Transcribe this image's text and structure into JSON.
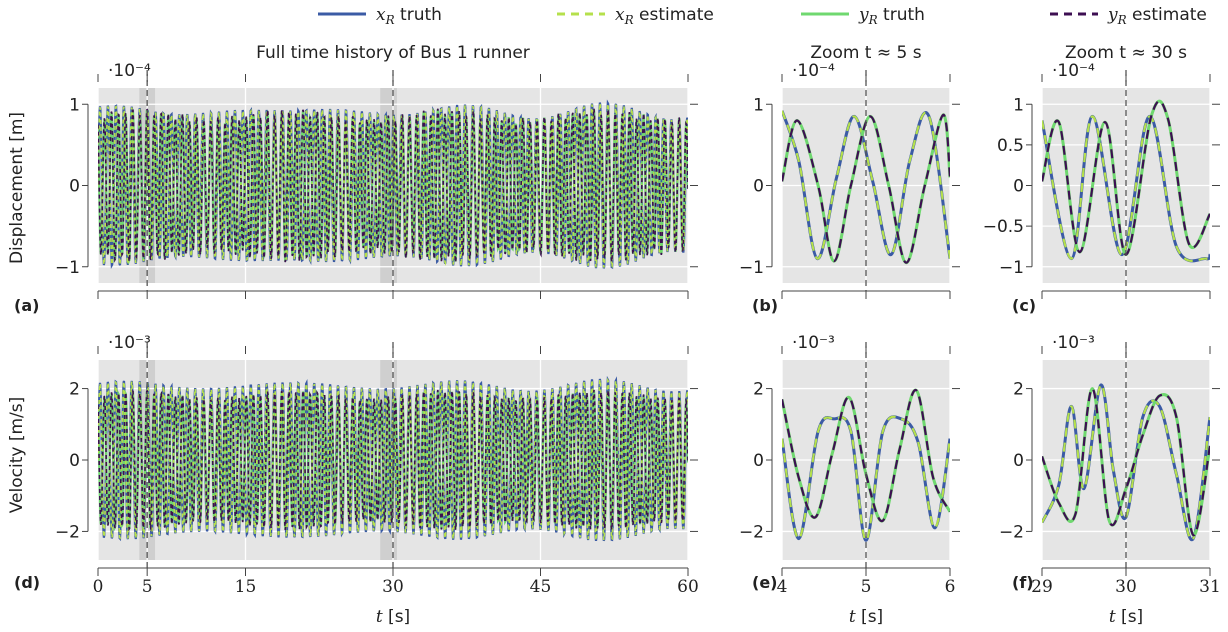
{
  "legend": [
    {
      "label": "x_R truth",
      "math": "x",
      "sub": "R",
      "suffix": "truth",
      "color": "#3b5ba5",
      "dash": "none"
    },
    {
      "label": "x_R estimate",
      "math": "x",
      "sub": "R",
      "suffix": "estimate",
      "color": "#b5e04c",
      "dash": "8,6"
    },
    {
      "label": "y_R truth",
      "math": "y",
      "sub": "R",
      "suffix": "truth",
      "color": "#6fd86f",
      "dash": "none"
    },
    {
      "label": "y_R estimate",
      "math": "y",
      "sub": "R",
      "suffix": "estimate",
      "color": "#3d0f52",
      "dash": "8,6"
    }
  ],
  "row_labels": {
    "top": "Displacement [m]",
    "bottom": "Velocity [m/s]"
  },
  "xlabel": "t [s]",
  "chart_data": [
    {
      "id": "a",
      "panel_label": "(a)",
      "type": "line",
      "title": "Full time history of Bus 1 runner",
      "exponent": "·10⁻⁴",
      "ylabel": "Displacement [m]",
      "xlabel": "",
      "xlim": [
        0,
        60
      ],
      "ylim": [
        -1.2,
        1.2
      ],
      "xticks": [
        0,
        5,
        15,
        30,
        45,
        60
      ],
      "xtick_labels": [
        "",
        "",
        "",
        "",
        "",
        ""
      ],
      "yticks": [
        -1,
        0,
        1
      ],
      "ytick_labels": [
        "−1",
        "0",
        "1"
      ],
      "highlights": [
        [
          4.2,
          5.8
        ],
        [
          28.7,
          30.4
        ]
      ],
      "vlines": [
        5,
        30
      ],
      "signal": {
        "amp_x": 0.92,
        "amp_y": 0.85,
        "freq": 1.18,
        "freq_y": 1.32
      }
    },
    {
      "id": "b",
      "panel_label": "(b)",
      "type": "line",
      "title": "Zoom t ≈ 5 s",
      "exponent": "·10⁻⁴",
      "xlabel": "",
      "xlim": [
        4,
        6
      ],
      "ylim": [
        -1.2,
        1.2
      ],
      "xticks": [
        4,
        5,
        6
      ],
      "xtick_labels": [
        "",
        "",
        ""
      ],
      "yticks": [
        -1,
        0,
        1
      ],
      "ytick_labels": [
        "−1",
        "0",
        "1"
      ],
      "vlines": [
        5
      ],
      "series": [
        {
          "name": "x_R truth",
          "x": [
            4.0,
            4.2,
            4.42,
            4.65,
            4.86,
            5.08,
            5.3,
            5.52,
            5.75,
            6.0
          ],
          "y": [
            0.92,
            0.3,
            -0.9,
            0.1,
            0.85,
            0.05,
            -0.85,
            0.3,
            0.85,
            -0.9
          ]
        },
        {
          "name": "y_R truth",
          "x": [
            4.0,
            4.18,
            4.43,
            4.62,
            4.82,
            5.05,
            5.27,
            5.48,
            5.7,
            5.92,
            6.0
          ],
          "y": [
            0.05,
            0.8,
            0.0,
            -0.93,
            0.0,
            0.85,
            0.0,
            -0.95,
            0.0,
            0.87,
            0.1
          ]
        }
      ]
    },
    {
      "id": "c",
      "panel_label": "(c)",
      "type": "line",
      "title": "Zoom t ≈ 30 s",
      "exponent": "·10⁻⁴",
      "xlabel": "",
      "xlim": [
        29,
        31
      ],
      "ylim": [
        -1.2,
        1.2
      ],
      "xticks": [
        29,
        30,
        31
      ],
      "xtick_labels": [
        "",
        "",
        ""
      ],
      "yticks": [
        -1,
        -0.5,
        0,
        0.5,
        1
      ],
      "ytick_labels": [
        "−1",
        "−0.5",
        "0",
        "0.5",
        "1"
      ],
      "vlines": [
        30
      ],
      "series": [
        {
          "name": "x_R truth",
          "x": [
            29.0,
            29.35,
            29.6,
            29.95,
            30.28,
            30.6,
            30.95,
            31.0
          ],
          "y": [
            0.8,
            -0.9,
            0.85,
            -0.85,
            0.85,
            -0.75,
            -0.9,
            -0.85
          ]
        },
        {
          "name": "y_R truth",
          "x": [
            29.0,
            29.2,
            29.45,
            29.75,
            30.0,
            30.3,
            30.5,
            30.75,
            31.0
          ],
          "y": [
            0.05,
            0.78,
            -0.82,
            0.78,
            -0.85,
            0.85,
            0.82,
            -0.72,
            -0.35
          ]
        }
      ]
    },
    {
      "id": "d",
      "panel_label": "(d)",
      "type": "line",
      "title": "",
      "exponent": "·10⁻³",
      "ylabel": "Velocity [m/s]",
      "xlabel": "t [s]",
      "xlim": [
        0,
        60
      ],
      "ylim": [
        -2.8,
        2.8
      ],
      "xticks": [
        0,
        5,
        15,
        30,
        45,
        60
      ],
      "xtick_labels": [
        "0",
        "5",
        "15",
        "30",
        "45",
        "60"
      ],
      "yticks": [
        -2,
        0,
        2
      ],
      "ytick_labels": [
        "−2",
        "0",
        "2"
      ],
      "highlights": [
        [
          4.2,
          5.8
        ],
        [
          28.7,
          30.4
        ]
      ],
      "vlines": [
        5,
        30
      ],
      "signal": {
        "amp_x": 2.1,
        "amp_y": 1.8,
        "freq": 1.18,
        "freq_y": 1.32
      }
    },
    {
      "id": "e",
      "panel_label": "(e)",
      "type": "line",
      "title": "",
      "exponent": "·10⁻³",
      "xlabel": "t [s]",
      "xlim": [
        4,
        6
      ],
      "ylim": [
        -2.8,
        2.8
      ],
      "xticks": [
        4,
        5,
        6
      ],
      "xtick_labels": [
        "4",
        "5",
        "6"
      ],
      "yticks": [
        -2,
        0,
        2
      ],
      "ytick_labels": [
        "−2",
        "0",
        "2"
      ],
      "vlines": [
        5
      ],
      "series": [
        {
          "name": "x_R truth",
          "x": [
            4.0,
            4.2,
            4.43,
            4.62,
            4.82,
            5.0,
            5.2,
            5.42,
            5.62,
            5.82,
            6.0
          ],
          "y": [
            0.6,
            -2.2,
            0.8,
            1.15,
            0.8,
            -2.25,
            0.8,
            1.15,
            0.5,
            -1.9,
            0.6
          ]
        },
        {
          "name": "y_R truth",
          "x": [
            4.0,
            4.2,
            4.4,
            4.6,
            4.8,
            5.0,
            5.2,
            5.4,
            5.6,
            5.8,
            6.0
          ],
          "y": [
            1.7,
            -0.5,
            -1.6,
            0.2,
            1.75,
            -0.4,
            -1.7,
            0.3,
            1.95,
            -0.5,
            -1.45
          ]
        }
      ]
    },
    {
      "id": "f",
      "panel_label": "(f)",
      "type": "line",
      "title": "",
      "exponent": "·10⁻³",
      "xlabel": "t [s]",
      "xlim": [
        29,
        31
      ],
      "ylim": [
        -2.8,
        2.8
      ],
      "xticks": [
        29,
        30,
        31
      ],
      "xtick_labels": [
        "29",
        "30",
        "31"
      ],
      "yticks": [
        -2,
        0,
        2
      ],
      "ytick_labels": [
        "−2",
        "0",
        "2"
      ],
      "vlines": [
        30
      ],
      "series": [
        {
          "name": "x_R truth",
          "x": [
            29.0,
            29.2,
            29.35,
            29.5,
            29.7,
            29.85,
            30.0,
            30.2,
            30.4,
            30.6,
            30.8,
            31.0
          ],
          "y": [
            -1.75,
            -0.7,
            1.5,
            -0.8,
            2.1,
            -0.3,
            -1.6,
            1.2,
            1.5,
            -0.4,
            -2.2,
            1.2
          ]
        },
        {
          "name": "y_R truth",
          "x": [
            29.0,
            29.2,
            29.4,
            29.6,
            29.8,
            30.0,
            30.2,
            30.4,
            30.6,
            30.8,
            31.0
          ],
          "y": [
            0.1,
            -1.2,
            -1.5,
            2.0,
            -1.7,
            -0.8,
            0.7,
            1.8,
            1.2,
            -2.1,
            0.4
          ]
        }
      ]
    }
  ]
}
